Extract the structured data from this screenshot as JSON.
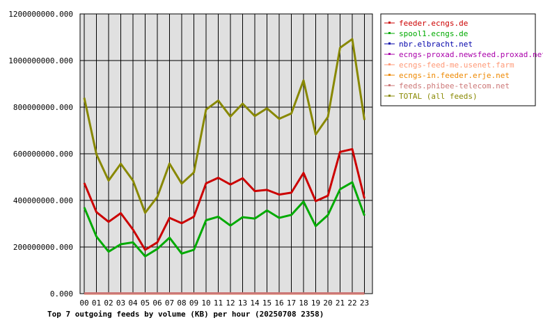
{
  "chart_data": {
    "type": "line",
    "title": "Top 7 outgoing feeds by volume (KB) per hour (20250708 2358)",
    "categories": [
      "00",
      "01",
      "02",
      "03",
      "04",
      "05",
      "06",
      "07",
      "08",
      "09",
      "10",
      "11",
      "12",
      "13",
      "14",
      "15",
      "16",
      "17",
      "18",
      "19",
      "20",
      "21",
      "22",
      "23"
    ],
    "y_ticks": [
      "0.000",
      "200000000.000",
      "400000000.000",
      "600000000.000",
      "800000000.000",
      "1000000000.000",
      "1200000000.000"
    ],
    "ylim": [
      0,
      1200000000
    ],
    "grid": true,
    "legend_position": "right",
    "series": [
      {
        "name": "feeder.ecngs.de",
        "color": "#cc0000",
        "values": [
          475000000,
          350000000,
          308000000,
          345000000,
          275000000,
          188000000,
          220000000,
          325000000,
          302000000,
          330000000,
          473000000,
          497000000,
          468000000,
          495000000,
          440000000,
          445000000,
          425000000,
          433000000,
          518000000,
          397000000,
          420000000,
          608000000,
          620000000,
          408000000
        ]
      },
      {
        "name": "spool1.ecngs.de",
        "color": "#00aa00",
        "values": [
          370000000,
          245000000,
          180000000,
          212000000,
          220000000,
          160000000,
          192000000,
          240000000,
          172000000,
          188000000,
          315000000,
          330000000,
          292000000,
          328000000,
          322000000,
          357000000,
          325000000,
          338000000,
          395000000,
          290000000,
          337000000,
          448000000,
          478000000,
          335000000
        ]
      },
      {
        "name": "nbr.elbracht.net",
        "color": "#0000aa",
        "values": [
          1500000,
          1500000,
          1500000,
          1500000,
          1500000,
          1500000,
          1500000,
          1500000,
          1500000,
          1500000,
          1500000,
          1500000,
          1500000,
          1500000,
          1500000,
          1500000,
          1500000,
          1500000,
          1500000,
          1500000,
          1500000,
          1500000,
          1500000,
          1500000
        ]
      },
      {
        "name": "ecngs-proxad.newsfeed.proxad.net",
        "color": "#aa00aa",
        "values": [
          1000000,
          1000000,
          1000000,
          1000000,
          1000000,
          1000000,
          1000000,
          1000000,
          1000000,
          1000000,
          1000000,
          1000000,
          1000000,
          1000000,
          1000000,
          1000000,
          1000000,
          1000000,
          1000000,
          1000000,
          1000000,
          1000000,
          1000000,
          1000000
        ]
      },
      {
        "name": "ecngs-feed-me.usenet.farm",
        "color": "#ff9977",
        "values": [
          800000,
          800000,
          800000,
          800000,
          800000,
          800000,
          800000,
          800000,
          800000,
          800000,
          800000,
          800000,
          800000,
          800000,
          800000,
          800000,
          800000,
          800000,
          800000,
          800000,
          800000,
          800000,
          800000,
          800000
        ]
      },
      {
        "name": "ecngs-in.feeder.erje.net",
        "color": "#ee8800",
        "values": [
          600000,
          600000,
          600000,
          600000,
          600000,
          600000,
          600000,
          600000,
          600000,
          600000,
          600000,
          600000,
          600000,
          600000,
          600000,
          600000,
          600000,
          600000,
          600000,
          600000,
          600000,
          600000,
          600000,
          600000
        ]
      },
      {
        "name": "feeds.phibee-telecom.net",
        "color": "#cc7777",
        "values": [
          1200000,
          1200000,
          1200000,
          1200000,
          1200000,
          1200000,
          1200000,
          1200000,
          1200000,
          1200000,
          1200000,
          1200000,
          1200000,
          1200000,
          1200000,
          1200000,
          1200000,
          1200000,
          1200000,
          1200000,
          1200000,
          1200000,
          1200000,
          1200000
        ]
      },
      {
        "name": "TOTAL (all feeds)",
        "color": "#888800",
        "values": [
          840000000,
          598000000,
          485000000,
          557000000,
          485000000,
          347000000,
          415000000,
          558000000,
          472000000,
          520000000,
          790000000,
          828000000,
          760000000,
          815000000,
          762000000,
          795000000,
          750000000,
          773000000,
          915000000,
          683000000,
          758000000,
          1055000000,
          1092000000,
          745000000
        ]
      }
    ]
  }
}
